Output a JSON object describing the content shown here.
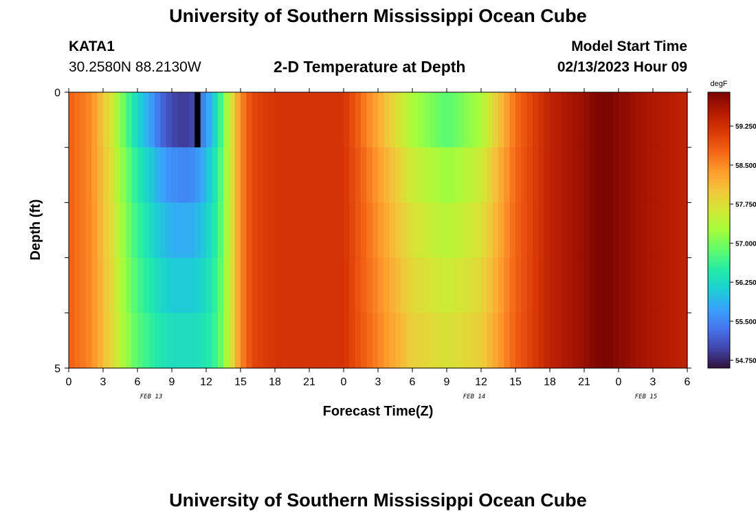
{
  "header": {
    "title": "University of Southern Mississippi Ocean Cube",
    "station_id": "KATA1",
    "station_coords": "30.2580N  88.2130W",
    "subtitle": "2-D Temperature at Depth",
    "model_start_label": "Model Start Time",
    "model_start_value": "02/13/2023 Hour 09"
  },
  "footer": {
    "title": "University of Southern Mississippi Ocean Cube"
  },
  "chart_data": {
    "type": "heatmap",
    "title": "2-D Temperature at Depth",
    "xlabel": "Forecast Time(Z)",
    "ylabel": "Depth (ft)",
    "x_tick_labels": [
      "0",
      "3",
      "6",
      "9",
      "12",
      "15",
      "18",
      "21",
      "0",
      "3",
      "6",
      "9",
      "12",
      "15",
      "18",
      "21",
      "0",
      "3",
      "6"
    ],
    "x_date_labels": [
      {
        "label": "FEB 13",
        "at_tick": 6
      },
      {
        "label": "FEB 14",
        "at_tick": 54
      },
      {
        "label": "FEB 15",
        "at_tick": 84
      }
    ],
    "x_range_hours": [
      0,
      54
    ],
    "y_tick_labels": [
      "0",
      "5"
    ],
    "y_range": [
      0,
      5
    ],
    "colorbar": {
      "unit": "degF",
      "ticks": [
        "59.250",
        "58.500",
        "57.750",
        "57.000",
        "56.250",
        "55.500",
        "54.750"
      ],
      "range": [
        54.6,
        59.9
      ],
      "colors": [
        "#30123b",
        "#4145ab",
        "#4675ed",
        "#39a2fc",
        "#1bcfd4",
        "#24eca6",
        "#61fc6c",
        "#a4fc3b",
        "#d1e834",
        "#f3c63a",
        "#fe9b2d",
        "#f36315",
        "#d93806",
        "#b11901",
        "#7a0402"
      ]
    },
    "depth_rows": 5,
    "hourly_profiles": {
      "hours": [
        0,
        2,
        4,
        5,
        6,
        7,
        8,
        9,
        10,
        11,
        12,
        13,
        14,
        15,
        16,
        17,
        18,
        24,
        30,
        33,
        36,
        39,
        42,
        45,
        46,
        47,
        48,
        49,
        50,
        51,
        52,
        54
      ],
      "surface": [
        58.8,
        58.5,
        57.5,
        56.8,
        56.2,
        55.8,
        55.3,
        55.0,
        54.9,
        55.0,
        55.6,
        56.4,
        57.5,
        58.5,
        59.0,
        59.1,
        59.2,
        59.2,
        57.3,
        56.8,
        57.3,
        58.7,
        59.4,
        59.7,
        59.85,
        59.9,
        59.8,
        59.7,
        59.6,
        59.55,
        59.5,
        59.4
      ],
      "deep": [
        58.8,
        58.5,
        57.7,
        57.2,
        56.8,
        56.6,
        56.4,
        56.3,
        56.3,
        56.3,
        56.4,
        56.7,
        57.5,
        58.5,
        59.0,
        59.1,
        59.2,
        59.2,
        57.9,
        57.7,
        57.9,
        58.8,
        59.4,
        59.7,
        59.85,
        59.9,
        59.8,
        59.7,
        59.6,
        59.55,
        59.5,
        59.4
      ]
    },
    "missing_cells": [
      {
        "hour": 11,
        "row": 0
      }
    ]
  }
}
